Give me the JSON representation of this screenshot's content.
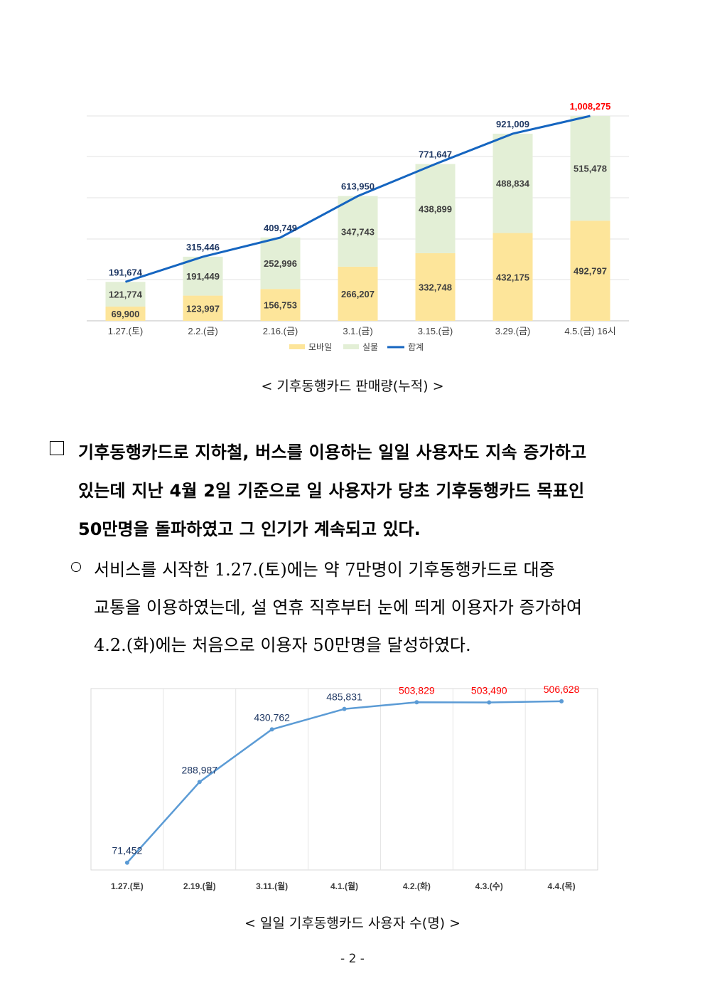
{
  "chart_data": [
    {
      "type": "bar",
      "stacked": true,
      "title": "",
      "categories": [
        "1.27.(토)",
        "2.2.(금)",
        "2.16.(금)",
        "3.1.(금)",
        "3.15.(금)",
        "3.29.(금)",
        "4.5.(금) 16시"
      ],
      "series": [
        {
          "name": "모바일",
          "color": "#fde59a",
          "values": [
            69900,
            123997,
            156753,
            266207,
            332748,
            432175,
            492797
          ],
          "labels": [
            "69,900",
            "123,997",
            "156,753",
            "266,207",
            "332,748",
            "432,175",
            "492,797"
          ]
        },
        {
          "name": "실물",
          "color": "#e3efd6",
          "values": [
            121774,
            191449,
            252996,
            347743,
            438899,
            488834,
            515478
          ],
          "labels": [
            "121,774",
            "191,449",
            "252,996",
            "347,743",
            "438,899",
            "488,834",
            "515,478"
          ]
        },
        {
          "name": "합계",
          "type": "line",
          "color": "#1565c0",
          "values": [
            191674,
            315446,
            409749,
            613950,
            771647,
            921009,
            1008275
          ],
          "labels": [
            "191,674",
            "315,446",
            "409,749",
            "613,950",
            "771,647",
            "921,009",
            "1,008,275"
          ]
        }
      ],
      "highlight_color": "#ff0000",
      "ylim": [
        0,
        1008275
      ],
      "grid": true,
      "legend": "bottom"
    },
    {
      "type": "line",
      "title": "",
      "categories": [
        "1.27.(토)",
        "2.19.(월)",
        "3.11.(월)",
        "4.1.(월)",
        "4.2.(화)",
        "4.3.(수)",
        "4.4.(목)"
      ],
      "series": [
        {
          "name": "일일 사용자 수",
          "color": "#5b9bd5",
          "values": [
            71452,
            288987,
            430762,
            485831,
            503829,
            503490,
            506628
          ],
          "labels": [
            "71,452",
            "288,987",
            "430,762",
            "485,831",
            "503,829",
            "503,490",
            "506,628"
          ],
          "label_colors": [
            "#1f3864",
            "#1f3864",
            "#1f3864",
            "#1f3864",
            "#ff0000",
            "#ff0000",
            "#ff0000"
          ]
        }
      ],
      "grid": true,
      "legend": "none"
    }
  ],
  "captions": {
    "chart1": "< 기후동행카드 판매량(누적) >",
    "chart2": "< 일일 기후동행카드 사용자 수(명) >"
  },
  "paragraph1": {
    "line1": "기후동행카드로 지하철, 버스를 이용하는 일일 사용자도 지속 증가하고",
    "line2": "있는데 지난 4월 2일 기준으로 일 사용자가 당초 기후동행카드 목표인",
    "line3": "50만명을 돌파하였고 그 인기가 계속되고 있다."
  },
  "paragraph2": {
    "line1": "서비스를 시작한 1.27.(토)에는 약 7만명이 기후동행카드로 대중",
    "line2": "교통을 이용하였는데, 설 연휴 직후부터 눈에 띄게 이용자가 증가하여",
    "line3": "4.2.(화)에는 처음으로 이용자 50만명을 달성하였다."
  },
  "page_number": "- 2 -"
}
